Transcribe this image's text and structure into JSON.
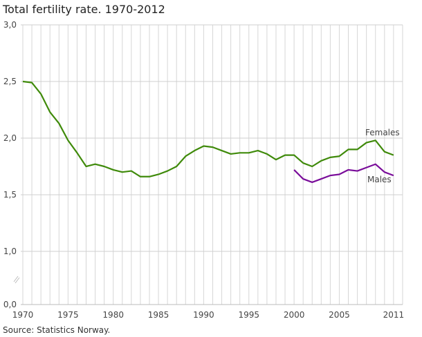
{
  "chart_data": {
    "type": "line",
    "title": "Total fertility rate. 1970-2012",
    "source": "Source: Statistics Norway.",
    "xlabel": "",
    "ylabel": "",
    "ylim": [
      0,
      3.0
    ],
    "y_axis_break": [
      0.0,
      1.0
    ],
    "grid": true,
    "x_ticks": [
      "1970",
      "1975",
      "1980",
      "1985",
      "1990",
      "1995",
      "2000",
      "2005",
      "2011"
    ],
    "y_ticks": [
      "0,0",
      "1,0",
      "1,5",
      "2,0",
      "2,5",
      "3,0"
    ],
    "series": [
      {
        "name": "Females",
        "color": "#3f8a0a",
        "x": [
          1970,
          1971,
          1972,
          1973,
          1974,
          1975,
          1976,
          1977,
          1978,
          1979,
          1980,
          1981,
          1982,
          1983,
          1984,
          1985,
          1986,
          1987,
          1988,
          1989,
          1990,
          1991,
          1992,
          1993,
          1994,
          1995,
          1996,
          1997,
          1998,
          1999,
          2000,
          2001,
          2002,
          2003,
          2004,
          2005,
          2006,
          2007,
          2008,
          2009,
          2010,
          2011
        ],
        "values": [
          2.5,
          2.49,
          2.39,
          2.23,
          2.13,
          1.98,
          1.87,
          1.75,
          1.77,
          1.75,
          1.72,
          1.7,
          1.71,
          1.66,
          1.66,
          1.68,
          1.71,
          1.75,
          1.84,
          1.89,
          1.93,
          1.92,
          1.89,
          1.86,
          1.87,
          1.87,
          1.89,
          1.86,
          1.81,
          1.85,
          1.85,
          1.78,
          1.75,
          1.8,
          1.83,
          1.84,
          1.9,
          1.9,
          1.96,
          1.98,
          1.88,
          1.85
        ]
      },
      {
        "name": "Males",
        "color": "#7a0d9a",
        "x": [
          2000,
          2001,
          2002,
          2003,
          2004,
          2005,
          2006,
          2007,
          2008,
          2009,
          2010,
          2011
        ],
        "values": [
          1.72,
          1.64,
          1.61,
          1.64,
          1.67,
          1.68,
          1.72,
          1.71,
          1.74,
          1.77,
          1.7,
          1.67
        ]
      }
    ]
  }
}
